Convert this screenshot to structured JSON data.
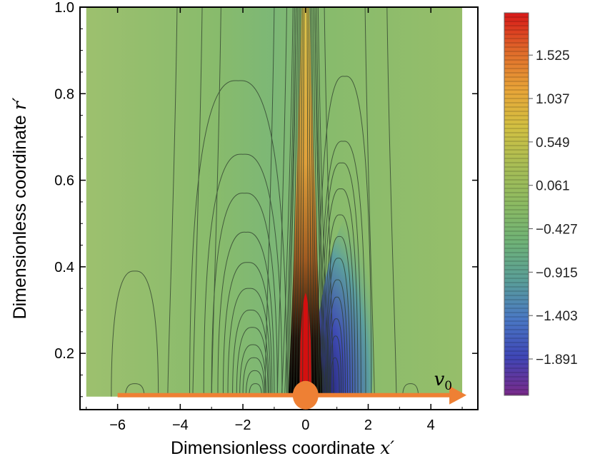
{
  "chart_data": {
    "type": "heatmap",
    "subtype": "contour",
    "xlabel": "Dimensionless coordinate",
    "xlabel_symbol": "x′",
    "ylabel": "Dimensionless coordinate",
    "ylabel_symbol": "r′",
    "xlim": [
      -7.2,
      5.5
    ],
    "ylim": [
      0.07,
      1.0
    ],
    "x_ticks": [
      -6,
      -4,
      -2,
      0,
      2,
      4
    ],
    "y_ticks": [
      0.2,
      0.4,
      0.6,
      0.8,
      1.0
    ],
    "x_tick_labels": [
      "−6",
      "−4",
      "−2",
      "0",
      "2",
      "4"
    ],
    "y_tick_labels": [
      "0.2",
      "0.4",
      "0.6",
      "0.8",
      "1.0"
    ],
    "colorbar": {
      "range": [
        -2.3,
        2.0
      ],
      "ticks": [
        1.525,
        1.037,
        0.549,
        0.061,
        -0.427,
        -0.915,
        -1.403,
        -1.891
      ],
      "tick_labels": [
        "1.525",
        "1.037",
        "0.549",
        "0.061",
        "−0.427",
        "−0.915",
        "−1.403",
        "−1.891"
      ],
      "colors": [
        "#d81818",
        "#e06a2a",
        "#e8a438",
        "#d2c042",
        "#a8bd55",
        "#8cba62",
        "#6fb277",
        "#5a9e98",
        "#4a78c4",
        "#3f46b6",
        "#5a2c9e",
        "#7a2a8a"
      ]
    },
    "overlay": {
      "arrow_label": "v",
      "arrow_label_subscript": "0",
      "arrow_from_x": -6.0,
      "arrow_to_x": 5.0,
      "arrow_y": 0.1,
      "marker_x": 0.0,
      "marker_y": 0.1,
      "arrow_color": "#ee8034",
      "red_blob_color": "#d40f0f"
    },
    "grid": false,
    "legend": "colorbar-right"
  }
}
